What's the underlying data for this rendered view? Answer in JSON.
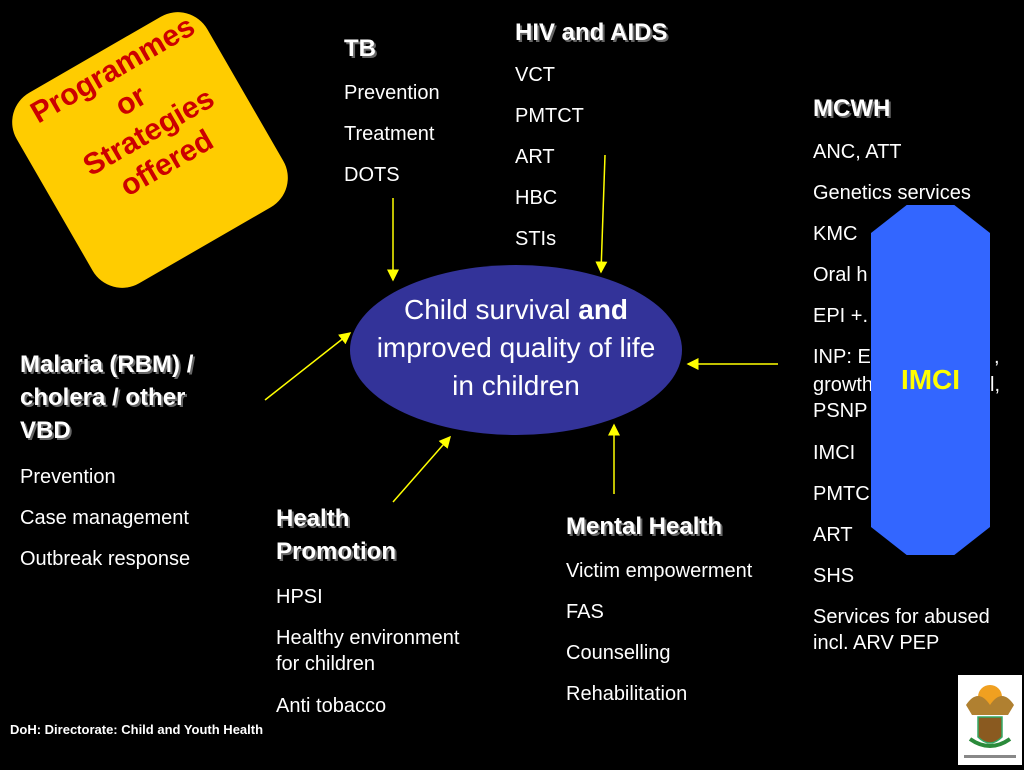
{
  "badge": {
    "lines": [
      "Programmes",
      "or",
      "Strategies",
      "offered"
    ],
    "color": "#ffcc00",
    "text_color": "#cc0000"
  },
  "center": {
    "text_pre": "Child survival ",
    "text_bold": "and",
    "text_post": "improved quality of life in children",
    "color": "#333399"
  },
  "tb": {
    "title": "TB",
    "items": [
      "Prevention",
      "Treatment",
      "DOTS"
    ]
  },
  "hiv": {
    "title": "HIV and AIDS",
    "items": [
      "VCT",
      "PMTCT",
      "ART",
      "HBC",
      "STIs"
    ]
  },
  "mcwh": {
    "title": "MCWH",
    "items": [
      "ANC, ATT",
      "Genetics services",
      "KMC",
      "Oral h",
      "EPI +.",
      "INP: E",
      ",",
      "growth",
      "l,",
      "PSNP",
      "IMCI",
      "PMTC",
      "ART",
      "SHS",
      "Services for abused",
      "incl. ARV PEP"
    ]
  },
  "imci": {
    "label": "IMCI",
    "color": "#3366ff",
    "text_color": "#ffff00"
  },
  "malaria": {
    "title_lines": [
      "Malaria (RBM) /",
      "cholera / other",
      "VBD"
    ],
    "items": [
      "Prevention",
      "Case management",
      "Outbreak response"
    ]
  },
  "health_promotion": {
    "title_lines": [
      "Health",
      "Promotion"
    ],
    "items": [
      "HPSI",
      "Healthy environment",
      "for children",
      "Anti tobacco"
    ]
  },
  "mental": {
    "title": "Mental Health",
    "items": [
      "Victim empowerment",
      "FAS",
      "Counselling",
      "Rehabilitation"
    ]
  },
  "footer": "DoH: Directorate: Child and Youth Health",
  "logo": {
    "text": "DEPARTMENT OF HEALTH"
  },
  "arrow_color": "#ffff00"
}
